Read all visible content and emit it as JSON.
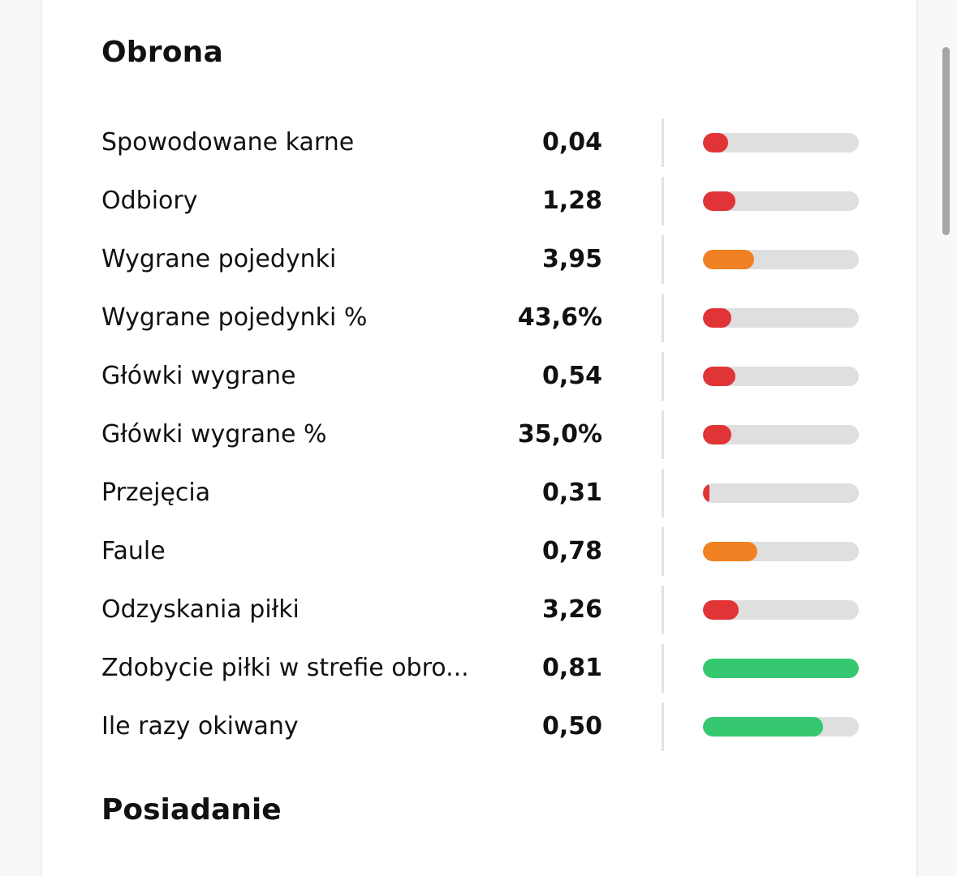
{
  "section": {
    "title": "Obrona"
  },
  "next_section": {
    "title": "Posiadanie"
  },
  "colors": {
    "low": "#e03437",
    "mid": "#f08122",
    "high": "#36c870",
    "track": "#dfdfdf"
  },
  "stats": [
    {
      "label": "Spowodowane karne",
      "value": "0,04",
      "level": 0.16,
      "color": "#e03437"
    },
    {
      "label": "Odbiory",
      "value": "1,28",
      "level": 0.21,
      "color": "#e03437"
    },
    {
      "label": "Wygrane pojedynki",
      "value": "3,95",
      "level": 0.33,
      "color": "#f08122"
    },
    {
      "label": "Wygrane pojedynki %",
      "value": "43,6%",
      "level": 0.18,
      "color": "#e03437"
    },
    {
      "label": "Główki wygrane",
      "value": "0,54",
      "level": 0.21,
      "color": "#e03437"
    },
    {
      "label": "Główki wygrane %",
      "value": "35,0%",
      "level": 0.18,
      "color": "#e03437"
    },
    {
      "label": "Przejęcia",
      "value": "0,31",
      "level": 0.04,
      "color": "#e03437"
    },
    {
      "label": "Faule",
      "value": "0,78",
      "level": 0.35,
      "color": "#f08122"
    },
    {
      "label": "Odzyskania piłki",
      "value": "3,26",
      "level": 0.23,
      "color": "#e03437"
    },
    {
      "label": "Zdobycie piłki w strefie obro...",
      "value": "0,81",
      "level": 1.0,
      "color": "#36c870"
    },
    {
      "label": "Ile razy okiwany",
      "value": "0,50",
      "level": 0.77,
      "color": "#36c870"
    }
  ]
}
